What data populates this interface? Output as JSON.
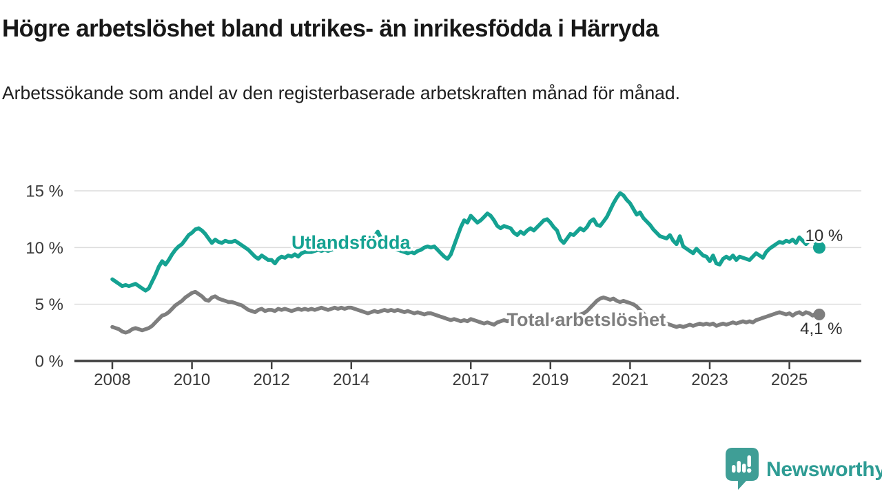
{
  "title": "Högre arbetslöshet bland utrikes- än inrikesfödda i Härryda",
  "subtitle": "Arbetssökande som andel av den registerbaserade arbetskraften månad för månad.",
  "branding": {
    "wordmark": "Newsworthy",
    "mark_color": "#3f9e96",
    "text_color": "#2e9c94"
  },
  "chart_data": {
    "type": "line",
    "title": "Högre arbetslöshet bland utrikes- än inrikesfödda i Härryda",
    "subtitle": "Arbetssökande som andel av den registerbaserade arbetskraften månad för månad.",
    "xlabel": "",
    "ylabel": "",
    "grid": "horizontal",
    "legend_position": "inline-labels",
    "ylim": [
      0,
      15.5
    ],
    "xlim": [
      2007.05,
      2026.8
    ],
    "y_ticks": [
      {
        "value": 0,
        "label": "0 %"
      },
      {
        "value": 5,
        "label": "5 %"
      },
      {
        "value": 10,
        "label": "10 %"
      },
      {
        "value": 15,
        "label": "15 %"
      }
    ],
    "x_ticks": [
      {
        "value": 2008,
        "label": "2008"
      },
      {
        "value": 2010,
        "label": "2010"
      },
      {
        "value": 2012,
        "label": "2012"
      },
      {
        "value": 2014,
        "label": "2014"
      },
      {
        "value": 2017,
        "label": "2017"
      },
      {
        "value": 2019,
        "label": "2019"
      },
      {
        "value": 2021,
        "label": "2021"
      },
      {
        "value": 2023,
        "label": "2023"
      },
      {
        "value": 2025,
        "label": "2025"
      }
    ],
    "series": [
      {
        "name": "Utlandsfödda",
        "color": "#15a292",
        "start_year": 2008,
        "points_per_year": 12,
        "end_dot_radius": 9,
        "line_width": 5.5,
        "values": [
          7.2,
          7.0,
          6.8,
          6.6,
          6.7,
          6.6,
          6.7,
          6.8,
          6.6,
          6.4,
          6.2,
          6.4,
          7.0,
          7.6,
          8.3,
          8.8,
          8.5,
          8.9,
          9.4,
          9.8,
          10.1,
          10.3,
          10.7,
          11.1,
          11.3,
          11.6,
          11.7,
          11.5,
          11.2,
          10.8,
          10.4,
          10.7,
          10.5,
          10.4,
          10.6,
          10.5,
          10.5,
          10.6,
          10.4,
          10.2,
          10.0,
          9.8,
          9.5,
          9.2,
          9.0,
          9.3,
          9.1,
          8.9,
          8.9,
          8.6,
          9.0,
          9.2,
          9.1,
          9.3,
          9.2,
          9.4,
          9.2,
          9.5,
          9.6,
          9.6,
          9.6,
          9.7,
          9.8,
          9.7,
          9.8,
          9.7,
          9.8,
          9.9,
          10.0,
          10.1,
          10.2,
          10.1,
          10.2,
          10.0,
          10.1,
          10.3,
          10.2,
          10.4,
          10.7,
          11.0,
          11.4,
          10.8,
          10.5,
          10.2,
          10.1,
          9.9,
          9.8,
          9.7,
          9.6,
          9.5,
          9.6,
          9.5,
          9.7,
          9.8,
          10.0,
          10.1,
          10.0,
          10.1,
          9.8,
          9.5,
          9.2,
          9.0,
          9.4,
          10.2,
          11.0,
          11.8,
          12.4,
          12.2,
          12.8,
          12.5,
          12.2,
          12.4,
          12.7,
          13.0,
          12.8,
          12.4,
          11.9,
          11.7,
          11.9,
          11.8,
          11.7,
          11.3,
          11.1,
          11.4,
          11.2,
          11.5,
          11.7,
          11.5,
          11.8,
          12.1,
          12.4,
          12.5,
          12.2,
          11.8,
          11.5,
          10.7,
          10.4,
          10.8,
          11.2,
          11.1,
          11.4,
          11.7,
          11.5,
          11.8,
          12.3,
          12.5,
          12.0,
          11.9,
          12.3,
          12.7,
          13.3,
          13.9,
          14.4,
          14.8,
          14.6,
          14.2,
          13.9,
          13.4,
          12.9,
          13.1,
          12.6,
          12.3,
          12.0,
          11.6,
          11.3,
          11.0,
          10.9,
          10.8,
          11.1,
          10.6,
          10.3,
          11.0,
          10.1,
          9.9,
          9.7,
          9.5,
          9.9,
          9.6,
          9.3,
          9.2,
          8.8,
          9.3,
          8.6,
          8.5,
          9.0,
          9.2,
          9.0,
          9.3,
          8.9,
          9.2,
          9.1,
          9.0,
          8.9,
          9.2,
          9.5,
          9.3,
          9.1,
          9.6,
          9.9,
          10.1,
          10.3,
          10.5,
          10.4,
          10.6,
          10.5,
          10.7,
          10.4,
          10.9,
          10.6,
          10.3,
          10.6,
          10.7,
          10.4,
          10.0
        ],
        "latest_value_label": "10 %"
      },
      {
        "name": "Total arbetslöshet",
        "color": "#7e7e7e",
        "start_year": 2008,
        "points_per_year": 12,
        "end_dot_radius": 8.5,
        "line_width": 5.5,
        "values": [
          3.0,
          2.9,
          2.8,
          2.6,
          2.5,
          2.6,
          2.8,
          2.9,
          2.8,
          2.7,
          2.8,
          2.9,
          3.1,
          3.4,
          3.7,
          4.0,
          4.1,
          4.3,
          4.6,
          4.9,
          5.1,
          5.3,
          5.6,
          5.8,
          6.0,
          6.1,
          5.9,
          5.7,
          5.4,
          5.3,
          5.6,
          5.7,
          5.5,
          5.4,
          5.3,
          5.2,
          5.2,
          5.1,
          5.0,
          4.9,
          4.7,
          4.5,
          4.4,
          4.3,
          4.5,
          4.6,
          4.4,
          4.5,
          4.5,
          4.4,
          4.6,
          4.5,
          4.6,
          4.5,
          4.4,
          4.5,
          4.6,
          4.5,
          4.6,
          4.5,
          4.6,
          4.5,
          4.6,
          4.7,
          4.6,
          4.5,
          4.6,
          4.7,
          4.6,
          4.7,
          4.6,
          4.7,
          4.7,
          4.6,
          4.5,
          4.4,
          4.3,
          4.2,
          4.3,
          4.4,
          4.3,
          4.4,
          4.5,
          4.4,
          4.5,
          4.4,
          4.5,
          4.4,
          4.3,
          4.4,
          4.3,
          4.2,
          4.3,
          4.2,
          4.1,
          4.2,
          4.2,
          4.1,
          4.0,
          3.9,
          3.8,
          3.7,
          3.6,
          3.7,
          3.6,
          3.5,
          3.6,
          3.5,
          3.7,
          3.6,
          3.5,
          3.4,
          3.3,
          3.4,
          3.3,
          3.2,
          3.4,
          3.5,
          3.6,
          3.5,
          3.6,
          3.5,
          3.6,
          3.7,
          3.6,
          3.7,
          3.6,
          3.7,
          3.8,
          3.7,
          3.6,
          3.7,
          3.6,
          3.7,
          3.8,
          3.7,
          3.8,
          3.9,
          3.8,
          3.9,
          4.0,
          4.1,
          4.2,
          4.4,
          4.7,
          5.0,
          5.3,
          5.5,
          5.6,
          5.5,
          5.4,
          5.5,
          5.3,
          5.2,
          5.3,
          5.2,
          5.1,
          5.0,
          4.8,
          4.5,
          4.2,
          3.9,
          3.7,
          3.5,
          3.4,
          3.3,
          3.2,
          3.3,
          3.2,
          3.1,
          3.0,
          3.1,
          3.0,
          3.1,
          3.2,
          3.1,
          3.2,
          3.3,
          3.2,
          3.3,
          3.2,
          3.3,
          3.1,
          3.2,
          3.3,
          3.2,
          3.3,
          3.4,
          3.3,
          3.4,
          3.5,
          3.4,
          3.5,
          3.4,
          3.6,
          3.7,
          3.8,
          3.9,
          4.0,
          4.1,
          4.2,
          4.3,
          4.2,
          4.1,
          4.2,
          4.0,
          4.2,
          4.3,
          4.1,
          4.3,
          4.2,
          4.0,
          4.2,
          4.1
        ],
        "latest_value_label": "4,1 %"
      }
    ],
    "annotations": [
      {
        "kind": "series",
        "text": "Utlandsfödda",
        "x": 2013.99,
        "y": 10.44,
        "color": "#15a292"
      },
      {
        "kind": "series",
        "text": "Total arbetslöshet",
        "x": 2019.9,
        "y": 3.64,
        "color": "#7e7e7e"
      },
      {
        "kind": "value",
        "text": "10 %",
        "x": 2025.87,
        "y": 11.1,
        "color": "#2d2d2d"
      },
      {
        "kind": "value",
        "text": "4,1 %",
        "x": 2025.8,
        "y": 2.91,
        "color": "#2d2d2d"
      }
    ]
  }
}
